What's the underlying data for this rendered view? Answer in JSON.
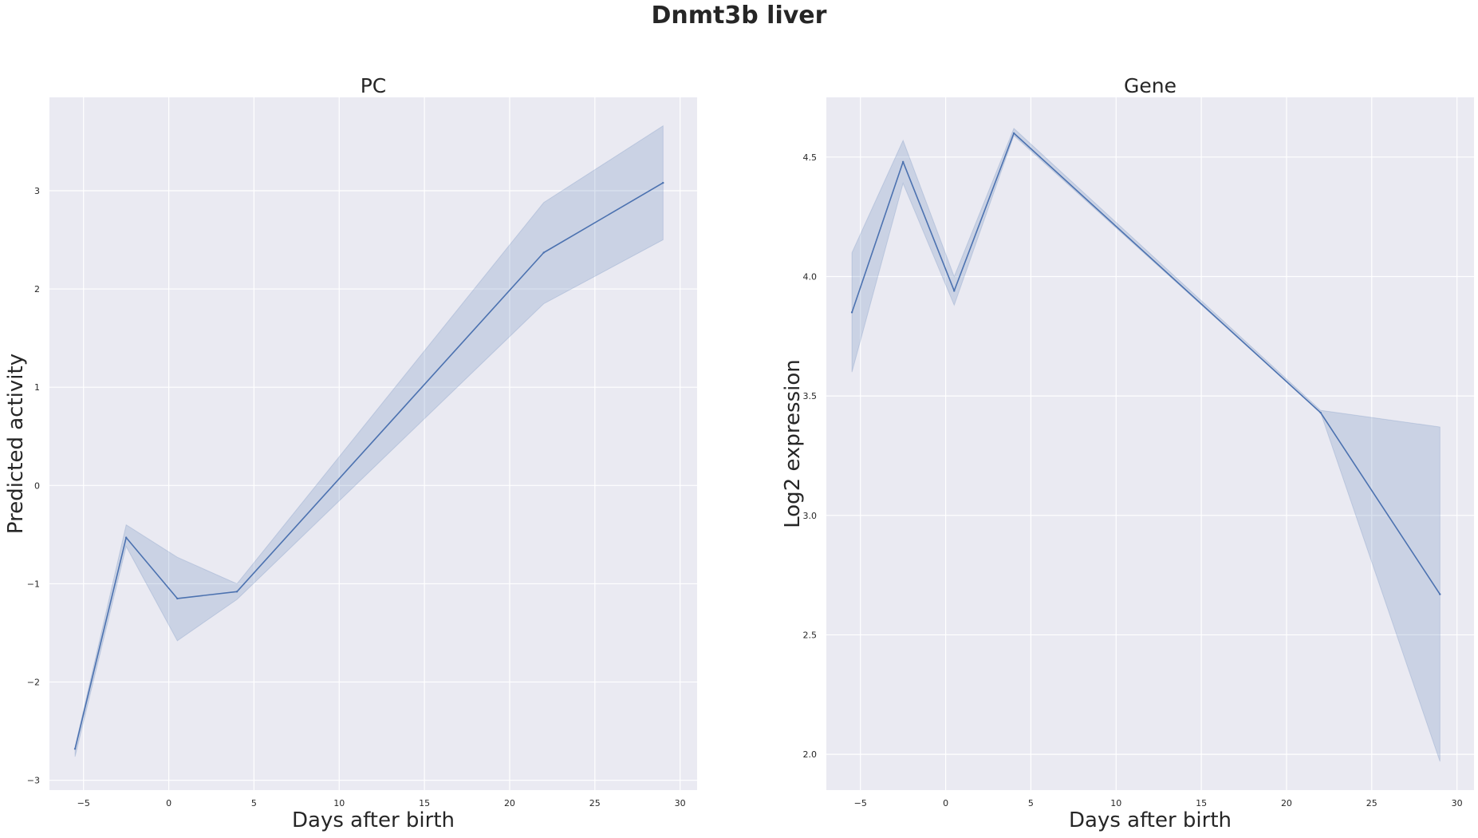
{
  "figure": {
    "title": "Dnmt3b liver"
  },
  "chart_data": [
    {
      "type": "line",
      "title": "PC",
      "xlabel": "Days after birth",
      "ylabel": "Predicted activity",
      "xlim": [
        -7.0,
        31.0
      ],
      "ylim": [
        -3.1,
        3.95
      ],
      "xticks": [
        -5,
        0,
        5,
        10,
        15,
        20,
        25,
        30
      ],
      "yticks": [
        -3,
        -2,
        -1,
        0,
        1,
        2,
        3
      ],
      "xtick_labels": [
        "−5",
        "0",
        "5",
        "10",
        "15",
        "20",
        "25",
        "30"
      ],
      "ytick_labels": [
        "−3",
        "−2",
        "−1",
        "0",
        "1",
        "2",
        "3"
      ],
      "grid": true,
      "series": [
        {
          "color": "#4c72b0",
          "x": [
            -5.5,
            -2.5,
            0.5,
            4.0,
            22.0,
            29.0
          ],
          "y": [
            -2.68,
            -0.53,
            -1.15,
            -1.08,
            2.37,
            3.08
          ],
          "ci_lower": [
            -2.76,
            -0.62,
            -1.58,
            -1.16,
            1.85,
            2.5
          ],
          "ci_upper": [
            -2.66,
            -0.4,
            -0.73,
            -1.0,
            2.88,
            3.66
          ]
        }
      ]
    },
    {
      "type": "line",
      "title": "Gene",
      "xlabel": "Days after birth",
      "ylabel": "Log2 expression",
      "xlim": [
        -7.0,
        31.0
      ],
      "ylim": [
        1.85,
        4.75
      ],
      "xticks": [
        -5,
        0,
        5,
        10,
        15,
        20,
        25,
        30
      ],
      "yticks": [
        2.0,
        2.5,
        3.0,
        3.5,
        4.0,
        4.5
      ],
      "xtick_labels": [
        "−5",
        "0",
        "5",
        "10",
        "15",
        "20",
        "25",
        "30"
      ],
      "ytick_labels": [
        "2.0",
        "2.5",
        "3.0",
        "3.5",
        "4.0",
        "4.5"
      ],
      "grid": true,
      "series": [
        {
          "color": "#4c72b0",
          "x": [
            -5.5,
            -2.5,
            0.5,
            4.0,
            22.0,
            29.0
          ],
          "y": [
            3.85,
            4.48,
            3.94,
            4.6,
            3.43,
            2.67
          ],
          "ci_lower": [
            3.6,
            4.39,
            3.88,
            4.59,
            3.43,
            1.97
          ],
          "ci_upper": [
            4.1,
            4.57,
            4.0,
            4.62,
            3.44,
            3.37
          ]
        }
      ]
    }
  ]
}
